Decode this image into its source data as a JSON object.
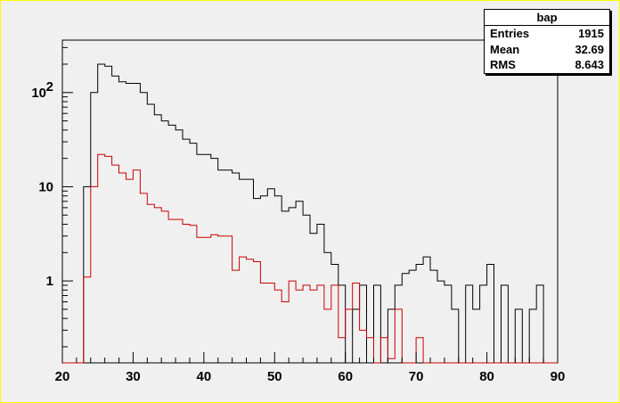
{
  "stats_box": {
    "title": "bap",
    "entries_label": "Entries",
    "entries_value": "1915",
    "mean_label": "Mean",
    "mean_value": "32.69",
    "rms_label": "RMS",
    "rms_value": "8.643"
  },
  "chart_data": {
    "type": "histogram",
    "scale_y": "log",
    "xlim": [
      20,
      90
    ],
    "ylim": [
      0.135,
      360
    ],
    "bin_width": 1,
    "bin_start": 20,
    "x_ticks": [
      "20",
      "30",
      "40",
      "50",
      "60",
      "70",
      "80",
      "90"
    ],
    "y_ticks": [
      {
        "value": 1,
        "label": "1"
      },
      {
        "value": 10,
        "label": "10"
      },
      {
        "value": 100,
        "label": "10",
        "exponent": "2"
      }
    ],
    "grid": false,
    "legend": "top-right",
    "series": [
      {
        "color": "#000000",
        "values": [
          0,
          0,
          0,
          10,
          100,
          200,
          190,
          150,
          130,
          125,
          125,
          100,
          75,
          58,
          50,
          45,
          40,
          32,
          29,
          22,
          22,
          20,
          15,
          15,
          14,
          12,
          12,
          7.5,
          8,
          9.5,
          8,
          5.5,
          6,
          7,
          5,
          3.2,
          4,
          2,
          1.5,
          0.9,
          0.1,
          0.5,
          0.9,
          0.1,
          0.9,
          0.1,
          0.5,
          0.9,
          1.2,
          1.3,
          1.5,
          1.8,
          1.3,
          1,
          0.9,
          0.5,
          0.1,
          0.9,
          0.5,
          0.9,
          1.5,
          0.1,
          0.9,
          0.1,
          0.5,
          0.1,
          0.5,
          0.9,
          0.1,
          0
        ]
      },
      {
        "color": "#cc0000",
        "values": [
          0,
          0,
          0,
          1.1,
          10,
          22,
          21,
          17,
          14,
          12,
          15,
          8.5,
          6.5,
          6,
          5.5,
          4.5,
          4.5,
          4,
          3.9,
          2.9,
          2.9,
          3.1,
          3,
          3,
          1.3,
          1.8,
          1.7,
          1.6,
          0.95,
          0.95,
          0.8,
          0.6,
          1,
          0.8,
          0.9,
          0.8,
          0.9,
          0.5,
          0.9,
          0.25,
          0.5,
          0.95,
          0.3,
          0.25,
          0.1,
          0.25,
          0.15,
          0.5,
          0.1,
          0.1,
          0.25,
          0.1,
          0.1,
          0.1,
          0.1,
          0.1,
          0.1,
          0.1,
          0.1,
          0.1,
          0.1,
          0.1,
          0.1,
          0.1,
          0.1,
          0.1,
          0.1,
          0.1,
          0.1,
          0
        ]
      }
    ]
  }
}
